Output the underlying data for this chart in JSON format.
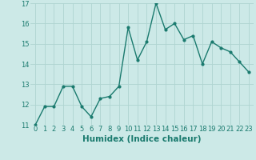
{
  "x": [
    0,
    1,
    2,
    3,
    4,
    5,
    6,
    7,
    8,
    9,
    10,
    11,
    12,
    13,
    14,
    15,
    16,
    17,
    18,
    19,
    20,
    21,
    22,
    23
  ],
  "y": [
    11.0,
    11.9,
    11.9,
    12.9,
    12.9,
    11.9,
    11.4,
    12.3,
    12.4,
    12.9,
    15.8,
    14.2,
    15.1,
    17.0,
    15.7,
    16.0,
    15.2,
    15.4,
    14.0,
    15.1,
    14.8,
    14.6,
    14.1,
    13.6
  ],
  "line_color": "#1a7a6e",
  "marker": "o",
  "markersize": 2.0,
  "linewidth": 1.0,
  "xlabel": "Humidex (Indice chaleur)",
  "xlabel_fontsize": 7.5,
  "bg_color": "#cce9e7",
  "grid_color": "#afd4d1",
  "ylim": [
    11,
    17
  ],
  "xlim": [
    -0.5,
    23.5
  ],
  "yticks": [
    11,
    12,
    13,
    14,
    15,
    16,
    17
  ],
  "xticks": [
    0,
    1,
    2,
    3,
    4,
    5,
    6,
    7,
    8,
    9,
    10,
    11,
    12,
    13,
    14,
    15,
    16,
    17,
    18,
    19,
    20,
    21,
    22,
    23
  ],
  "tick_fontsize": 6.0,
  "tick_color": "#1a7a6e",
  "label_color": "#1a7a6e"
}
